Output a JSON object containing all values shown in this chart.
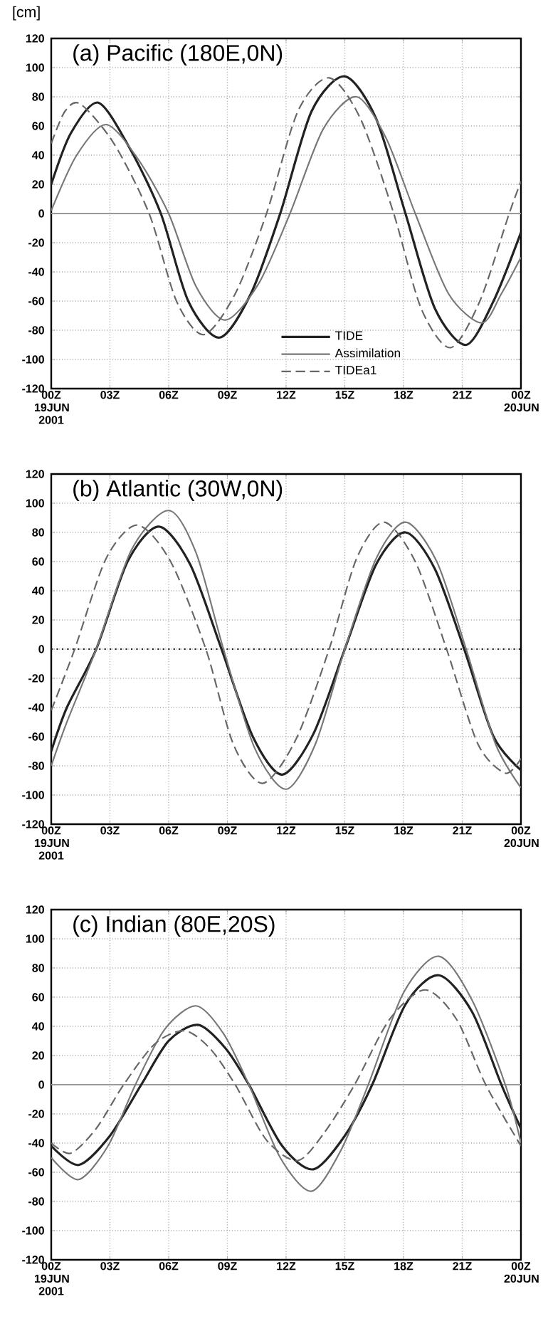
{
  "chart_data": [
    {
      "type": "line",
      "title": "(a) Pacific (180E,0N)",
      "ylabel": "[cm]",
      "xlim": [
        0,
        24
      ],
      "ylim": [
        -120,
        120
      ],
      "xticks": [
        {
          "value": 0,
          "label": "00Z 19JUN 2001"
        },
        {
          "value": 3,
          "label": "03Z"
        },
        {
          "value": 6,
          "label": "06Z"
        },
        {
          "value": 9,
          "label": "09Z"
        },
        {
          "value": 12,
          "label": "12Z"
        },
        {
          "value": 15,
          "label": "15Z"
        },
        {
          "value": 18,
          "label": "18Z"
        },
        {
          "value": 21,
          "label": "21Z"
        },
        {
          "value": 24,
          "label": "00Z 20JUN"
        }
      ],
      "yticks": [
        -120,
        -100,
        -80,
        -60,
        -40,
        -20,
        0,
        20,
        40,
        60,
        80,
        100,
        120
      ],
      "grid": true,
      "legend": "bottom right",
      "marker": "none",
      "ref_lines": [
        {
          "axis": "y",
          "value": 0,
          "color": "#999999",
          "line_style": "solid"
        }
      ],
      "series": [
        {
          "name": "TIDE",
          "color": "#222222",
          "line_style": "solid",
          "x": [
            0,
            1,
            2.4,
            4,
            5.6,
            7,
            8.6,
            10.2,
            11.7,
            13.3,
            15,
            16.6,
            18.1,
            19.6,
            21.2,
            22.6,
            24
          ],
          "values": [
            20,
            55,
            76,
            45,
            0,
            -60,
            -85,
            -55,
            0,
            70,
            94,
            65,
            0,
            -65,
            -90,
            -60,
            -13
          ]
        },
        {
          "name": "Assimilation",
          "color": "#777777",
          "line_style": "solid",
          "x": [
            0,
            1.3,
            2.8,
            4.4,
            6,
            7.4,
            8.9,
            10.6,
            12.2,
            13.9,
            15.6,
            17.1,
            18.6,
            20.3,
            22,
            23,
            24
          ],
          "values": [
            2,
            40,
            61,
            38,
            0,
            -50,
            -73,
            -48,
            0,
            58,
            80,
            52,
            0,
            -55,
            -75,
            -55,
            -30
          ]
        },
        {
          "name": "TIDEa1",
          "color": "#666666",
          "line_style": "dashed",
          "x": [
            0,
            0.7,
            1.5,
            3.2,
            5,
            6.4,
            7.8,
            9.4,
            11,
            12.6,
            14.2,
            15.8,
            17.5,
            18.9,
            20.4,
            21.9,
            23.4,
            24
          ],
          "values": [
            48,
            70,
            75,
            48,
            0,
            -60,
            -83,
            -55,
            0,
            70,
            93,
            65,
            0,
            -65,
            -92,
            -60,
            0,
            22
          ]
        }
      ]
    },
    {
      "type": "line",
      "title": "(b) Atlantic (30W,0N)",
      "xlim": [
        0,
        24
      ],
      "ylim": [
        -120,
        120
      ],
      "xticks": [
        {
          "value": 0,
          "label": "00Z 19JUN 2001"
        },
        {
          "value": 3,
          "label": "03Z"
        },
        {
          "value": 6,
          "label": "06Z"
        },
        {
          "value": 9,
          "label": "09Z"
        },
        {
          "value": 12,
          "label": "12Z"
        },
        {
          "value": 15,
          "label": "15Z"
        },
        {
          "value": 18,
          "label": "18Z"
        },
        {
          "value": 21,
          "label": "21Z"
        },
        {
          "value": 24,
          "label": "00Z 20JUN"
        }
      ],
      "yticks": [
        -120,
        -100,
        -80,
        -60,
        -40,
        -20,
        0,
        20,
        40,
        60,
        80,
        100,
        120
      ],
      "grid": true,
      "marker": "none",
      "ref_lines": [
        {
          "axis": "y",
          "value": 0,
          "color": "#222222",
          "line_style": "dotted"
        }
      ],
      "series": [
        {
          "color": "#222222",
          "line_style": "solid",
          "x": [
            0,
            0.8,
            2.3,
            3.9,
            5.5,
            7.1,
            8.7,
            10.3,
            11.8,
            13.4,
            15,
            16.6,
            18.1,
            19.6,
            21.1,
            22.6,
            24
          ],
          "values": [
            -70,
            -40,
            0,
            60,
            84,
            58,
            0,
            -60,
            -86,
            -58,
            0,
            58,
            80,
            55,
            0,
            -60,
            -83
          ]
        },
        {
          "color": "#777777",
          "line_style": "solid",
          "x": [
            0,
            0.8,
            2.3,
            4.1,
            6,
            7.4,
            8.8,
            10.4,
            12,
            13.5,
            15,
            16.6,
            18.1,
            19.7,
            21.2,
            22.7,
            24
          ],
          "values": [
            -80,
            -50,
            0,
            68,
            95,
            66,
            0,
            -68,
            -96,
            -65,
            0,
            62,
            87,
            60,
            0,
            -65,
            -95
          ]
        },
        {
          "color": "#666666",
          "line_style": "dashed",
          "x": [
            0,
            1.2,
            2.8,
            4.4,
            6.1,
            7.9,
            9.3,
            10.8,
            12.5,
            14.2,
            15.6,
            17,
            18.6,
            20.2,
            21.8,
            23.2,
            24
          ],
          "values": [
            -42,
            0,
            62,
            85,
            60,
            0,
            -65,
            -92,
            -62,
            0,
            62,
            87,
            60,
            0,
            -65,
            -85,
            -75
          ]
        }
      ]
    },
    {
      "type": "line",
      "title": "(c) Indian (80E,20S)",
      "xlim": [
        0,
        24
      ],
      "ylim": [
        -120,
        120
      ],
      "xticks": [
        {
          "value": 0,
          "label": "00Z 19JUN 2001"
        },
        {
          "value": 3,
          "label": "03Z"
        },
        {
          "value": 6,
          "label": "06Z"
        },
        {
          "value": 9,
          "label": "09Z"
        },
        {
          "value": 12,
          "label": "12Z"
        },
        {
          "value": 15,
          "label": "15Z"
        },
        {
          "value": 18,
          "label": "18Z"
        },
        {
          "value": 21,
          "label": "21Z"
        },
        {
          "value": 24,
          "label": "00Z 20JUN"
        }
      ],
      "yticks": [
        -120,
        -100,
        -80,
        -60,
        -40,
        -20,
        0,
        20,
        40,
        60,
        80,
        100,
        120
      ],
      "grid": true,
      "marker": "none",
      "ref_lines": [
        {
          "axis": "y",
          "value": 0,
          "color": "#999999",
          "line_style": "solid"
        }
      ],
      "series": [
        {
          "color": "#222222",
          "line_style": "solid",
          "x": [
            0,
            1.4,
            3,
            4.6,
            6,
            7.5,
            8.9,
            10.1,
            11.8,
            13.4,
            15,
            16.4,
            18.1,
            19.8,
            21.5,
            23,
            24
          ],
          "values": [
            -42,
            -55,
            -35,
            0,
            30,
            41,
            25,
            0,
            -42,
            -58,
            -35,
            0,
            55,
            75,
            50,
            0,
            -30
          ]
        },
        {
          "color": "#777777",
          "line_style": "solid",
          "x": [
            0,
            1.4,
            2.9,
            4.3,
            5.8,
            7.4,
            8.8,
            10.1,
            11.7,
            13.3,
            14.8,
            16.2,
            18,
            19.8,
            21.5,
            23.2,
            24
          ],
          "values": [
            -50,
            -65,
            -42,
            0,
            38,
            54,
            35,
            0,
            -50,
            -73,
            -45,
            0,
            63,
            88,
            58,
            0,
            -40
          ]
        },
        {
          "color": "#666666",
          "line_style": "dashed",
          "x": [
            0,
            1,
            2.3,
            3.7,
            5.3,
            6.8,
            8.1,
            9.4,
            11,
            12.6,
            14,
            15.5,
            17.3,
            19.1,
            20.7,
            22.2,
            24
          ],
          "values": [
            -40,
            -47,
            -30,
            0,
            28,
            37,
            25,
            0,
            -38,
            -52,
            -32,
            0,
            45,
            65,
            45,
            0,
            -42
          ]
        }
      ]
    }
  ]
}
